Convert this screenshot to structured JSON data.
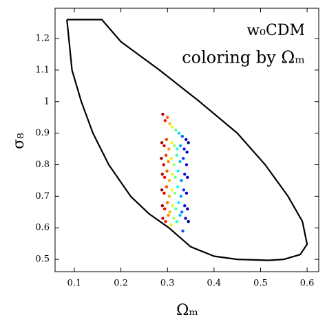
{
  "chart_data": {
    "type": "scatter",
    "annotations": [
      "w₀CDM",
      "coloring by Ωₘ"
    ],
    "x_label": "Ωₘ",
    "y_label": "σ₈",
    "xlim": [
      0.0586,
      0.625
    ],
    "ylim": [
      0.461,
      1.296
    ],
    "xticks": [
      0.1,
      0.2,
      0.3,
      0.4,
      0.5,
      0.6
    ],
    "yticks": [
      0.5,
      0.6,
      0.7,
      0.8,
      0.9,
      1.0,
      1.1,
      1.2
    ],
    "colormap": "jet_r",
    "contour": {
      "color": "#000000",
      "x": [
        0.084,
        0.159,
        0.2,
        0.283,
        0.369,
        0.45,
        0.51,
        0.559,
        0.59,
        0.6,
        0.585,
        0.55,
        0.517,
        0.45,
        0.4,
        0.35,
        0.303,
        0.26,
        0.221,
        0.174,
        0.14,
        0.115,
        0.095,
        0.084
      ],
      "y": [
        1.26,
        1.26,
        1.19,
        1.1,
        1.0,
        0.9,
        0.8,
        0.7,
        0.62,
        0.548,
        0.515,
        0.5,
        0.497,
        0.5,
        0.51,
        0.54,
        0.6,
        0.645,
        0.7,
        0.8,
        0.9,
        1.0,
        1.1,
        1.26
      ]
    },
    "points": {
      "x": [
        0.29,
        0.295,
        0.3,
        0.305,
        0.31,
        0.318,
        0.325,
        0.332,
        0.34,
        0.345,
        0.288,
        0.293,
        0.298,
        0.303,
        0.309,
        0.315,
        0.321,
        0.328,
        0.336,
        0.342,
        0.287,
        0.292,
        0.297,
        0.302,
        0.308,
        0.314,
        0.32,
        0.327,
        0.334,
        0.341,
        0.289,
        0.294,
        0.299,
        0.304,
        0.311,
        0.317,
        0.323,
        0.33,
        0.337,
        0.343,
        0.288,
        0.293,
        0.298,
        0.304,
        0.31,
        0.316,
        0.322,
        0.329,
        0.335,
        0.341,
        0.289,
        0.294,
        0.3,
        0.305,
        0.311,
        0.318,
        0.324,
        0.331,
        0.337,
        0.343,
        0.29,
        0.296,
        0.302,
        0.308,
        0.314,
        0.32,
        0.327,
        0.333,
        0.339,
        0.345
      ],
      "y": [
        0.96,
        0.94,
        0.95,
        0.93,
        0.92,
        0.91,
        0.9,
        0.89,
        0.88,
        0.87,
        0.87,
        0.86,
        0.88,
        0.85,
        0.87,
        0.86,
        0.85,
        0.86,
        0.85,
        0.84,
        0.82,
        0.8,
        0.83,
        0.81,
        0.82,
        0.8,
        0.83,
        0.81,
        0.82,
        0.8,
        0.77,
        0.76,
        0.78,
        0.75,
        0.77,
        0.76,
        0.78,
        0.75,
        0.77,
        0.76,
        0.72,
        0.71,
        0.73,
        0.7,
        0.72,
        0.71,
        0.73,
        0.7,
        0.72,
        0.71,
        0.67,
        0.66,
        0.68,
        0.65,
        0.67,
        0.66,
        0.68,
        0.65,
        0.67,
        0.66,
        0.63,
        0.62,
        0.64,
        0.61,
        0.63,
        0.62,
        0.64,
        0.59,
        0.63,
        0.62
      ]
    }
  }
}
